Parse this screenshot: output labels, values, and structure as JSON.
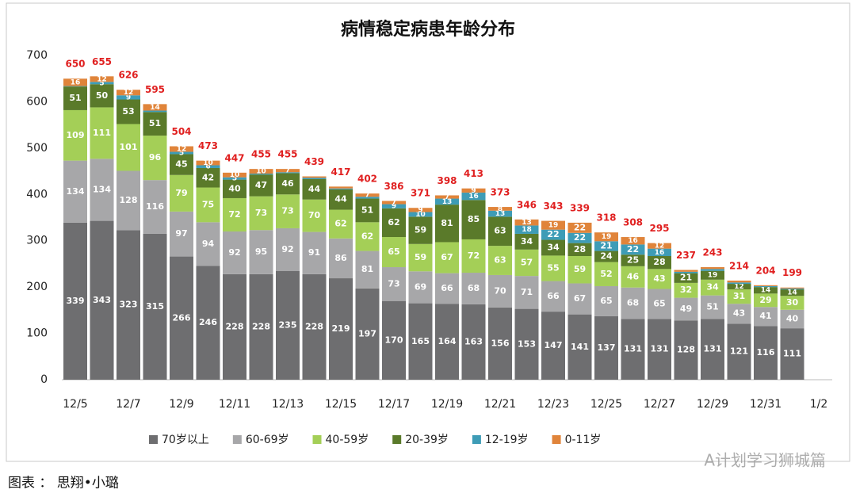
{
  "chart_data": {
    "type": "stacked_bar",
    "title": "病情稳定病患年龄分布",
    "categories": [
      "12/5",
      null,
      "12/7",
      null,
      "12/9",
      null,
      "12/11",
      null,
      "12/13",
      null,
      "12/15",
      null,
      "12/17",
      null,
      "12/19",
      null,
      "12/21",
      null,
      "12/23",
      null,
      "12/25",
      null,
      "12/27",
      null,
      "12/29",
      null,
      "12/31",
      null,
      "1/2"
    ],
    "series": [
      {
        "name": "70岁以上",
        "color": "#6e6e70",
        "values": [
          339,
          343,
          323,
          315,
          266,
          246,
          228,
          228,
          235,
          228,
          219,
          197,
          170,
          165,
          164,
          163,
          156,
          153,
          147,
          141,
          137,
          131,
          131,
          128,
          131,
          121,
          116,
          111,
          null
        ]
      },
      {
        "name": "60-69岁",
        "color": "#a7a7a9",
        "values": [
          134,
          134,
          128,
          116,
          97,
          94,
          92,
          95,
          92,
          91,
          86,
          81,
          73,
          69,
          66,
          68,
          70,
          71,
          66,
          67,
          65,
          68,
          65,
          49,
          51,
          43,
          41,
          40,
          null
        ]
      },
      {
        "name": "40-59岁",
        "color": "#a4cf57",
        "values": [
          109,
          111,
          101,
          96,
          79,
          75,
          72,
          73,
          73,
          70,
          62,
          62,
          65,
          59,
          67,
          72,
          63,
          57,
          55,
          59,
          52,
          46,
          43,
          32,
          34,
          31,
          29,
          30,
          null
        ]
      },
      {
        "name": "20-39岁",
        "color": "#5a7a2a",
        "values": [
          51,
          50,
          53,
          51,
          45,
          42,
          40,
          47,
          46,
          44,
          44,
          51,
          62,
          59,
          81,
          85,
          63,
          34,
          34,
          28,
          24,
          25,
          28,
          21,
          19,
          12,
          14,
          14,
          null
        ]
      },
      {
        "name": "12-19岁",
        "color": "#3e9cb6",
        "values": [
          1,
          5,
          9,
          3,
          5,
          6,
          5,
          2,
          2,
          3,
          2,
          4,
          9,
          10,
          13,
          16,
          13,
          18,
          22,
          22,
          21,
          22,
          16,
          3,
          4,
          3,
          2,
          2,
          null
        ]
      },
      {
        "name": "0-11岁",
        "color": "#e0843a",
        "values": [
          16,
          12,
          12,
          14,
          12,
          10,
          10,
          10,
          7,
          3,
          4,
          7,
          7,
          9,
          7,
          9,
          8,
          13,
          19,
          22,
          19,
          16,
          12,
          4,
          4,
          4,
          2,
          2,
          null
        ]
      }
    ],
    "totals": [
      650,
      655,
      626,
      595,
      504,
      473,
      447,
      455,
      455,
      439,
      417,
      402,
      386,
      371,
      398,
      413,
      373,
      346,
      343,
      339,
      318,
      308,
      295,
      237,
      243,
      214,
      204,
      199,
      null
    ],
    "ylim": [
      0,
      700
    ],
    "yticks": [
      0,
      100,
      200,
      300,
      400,
      500,
      600,
      700
    ],
    "grid": false,
    "source": "图表 ： 思翔•小璐",
    "watermark": "A计划学习狮城篇"
  }
}
